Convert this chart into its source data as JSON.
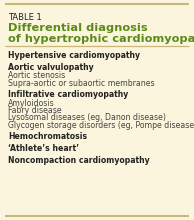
{
  "table_label": "TABLE 1",
  "title_line1": "Differential diagnosis",
  "title_line2": "of hypertrophic cardiomyopathy",
  "background_color": "#faf5dc",
  "border_color": "#c8b87a",
  "table_label_color": "#222222",
  "title_color": "#5a8a1a",
  "heading_color": "#222222",
  "body_color": "#444444",
  "content": [
    {
      "text": "Hypertensive cardiomyopathy",
      "bold": true,
      "indent": false
    },
    {
      "text": "",
      "bold": false,
      "indent": false
    },
    {
      "text": "Aortic valvulopathy",
      "bold": true,
      "indent": false
    },
    {
      "text": "Aortic stenosis",
      "bold": false,
      "indent": false
    },
    {
      "text": "Supra-aortic or subaortic membranes",
      "bold": false,
      "indent": false
    },
    {
      "text": "",
      "bold": false,
      "indent": false
    },
    {
      "text": "Infiltrative cardiomyopathy",
      "bold": true,
      "indent": false
    },
    {
      "text": "Amyloidosis",
      "bold": false,
      "indent": false
    },
    {
      "text": "Fabry disease",
      "bold": false,
      "indent": false
    },
    {
      "text": "Lysosomal diseases (eg, Danon disease)",
      "bold": false,
      "indent": false
    },
    {
      "text": "Glycogen storage disorders (eg, Pompe disease)",
      "bold": false,
      "indent": false
    },
    {
      "text": "",
      "bold": false,
      "indent": false
    },
    {
      "text": "Hemochromatosis",
      "bold": true,
      "indent": false
    },
    {
      "text": "",
      "bold": false,
      "indent": false
    },
    {
      "text": "‘Athlete’s heart’",
      "bold": true,
      "indent": false
    },
    {
      "text": "",
      "bold": false,
      "indent": false
    },
    {
      "text": "Noncompaction cardiomyopathy",
      "bold": true,
      "indent": false
    }
  ],
  "table_label_fontsize": 6.0,
  "title_fontsize": 8.2,
  "body_fontsize": 5.6,
  "figsize": [
    1.94,
    2.2
  ],
  "dpi": 100
}
